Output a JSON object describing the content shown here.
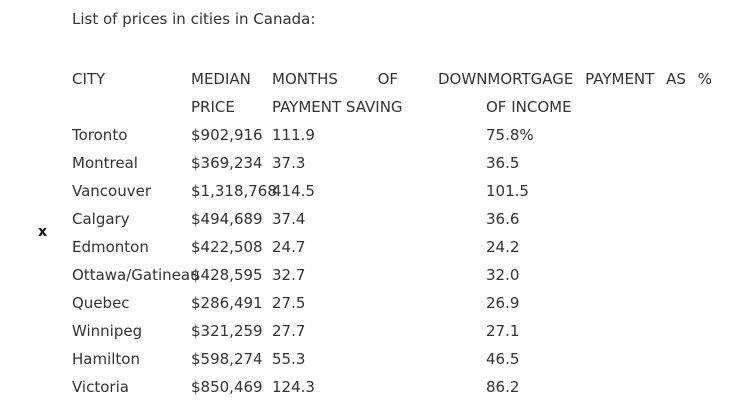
{
  "document": {
    "title": "List of prices in cities in Canada:",
    "marker": "x"
  },
  "table": {
    "headers": {
      "city": "CITY",
      "median_line1": "MEDIAN",
      "median_line2": "PRICE",
      "months_line1_words": [
        "MONTHS",
        "OF"
      ],
      "months_line2": "PAYMENT SAVING",
      "mortgage_line1_words": [
        "DOWNMORTGAGE",
        "PAYMENT",
        "AS",
        "%"
      ],
      "mortgage_line2": "OF INCOME"
    },
    "rows": [
      {
        "city": "Toronto",
        "median_price": "$902,916",
        "months_saving": "111.9",
        "mortgage_pct": "75.8%"
      },
      {
        "city": "Montreal",
        "median_price": "$369,234",
        "months_saving": "37.3",
        "mortgage_pct": "36.5"
      },
      {
        "city": "Vancouver",
        "median_price": "$1,318,768",
        "months_saving": "414.5",
        "mortgage_pct": "101.5"
      },
      {
        "city": "Calgary",
        "median_price": "$494,689",
        "months_saving": "37.4",
        "mortgage_pct": "36.6"
      },
      {
        "city": "Edmonton",
        "median_price": "$422,508",
        "months_saving": "24.7",
        "mortgage_pct": "24.2"
      },
      {
        "city": "Ottawa/Gatineau",
        "median_price": "$428,595",
        "months_saving": "32.7",
        "mortgage_pct": "32.0"
      },
      {
        "city": "Quebec",
        "median_price": "$286,491",
        "months_saving": "27.5",
        "mortgage_pct": "26.9"
      },
      {
        "city": "Winnipeg",
        "median_price": "$321,259",
        "months_saving": "27.7",
        "mortgage_pct": "27.1"
      },
      {
        "city": "Hamilton",
        "median_price": "$598,274",
        "months_saving": "55.3",
        "mortgage_pct": "46.5"
      },
      {
        "city": "Victoria",
        "median_price": "$850,469",
        "months_saving": "124.3",
        "mortgage_pct": "86.2"
      }
    ]
  }
}
